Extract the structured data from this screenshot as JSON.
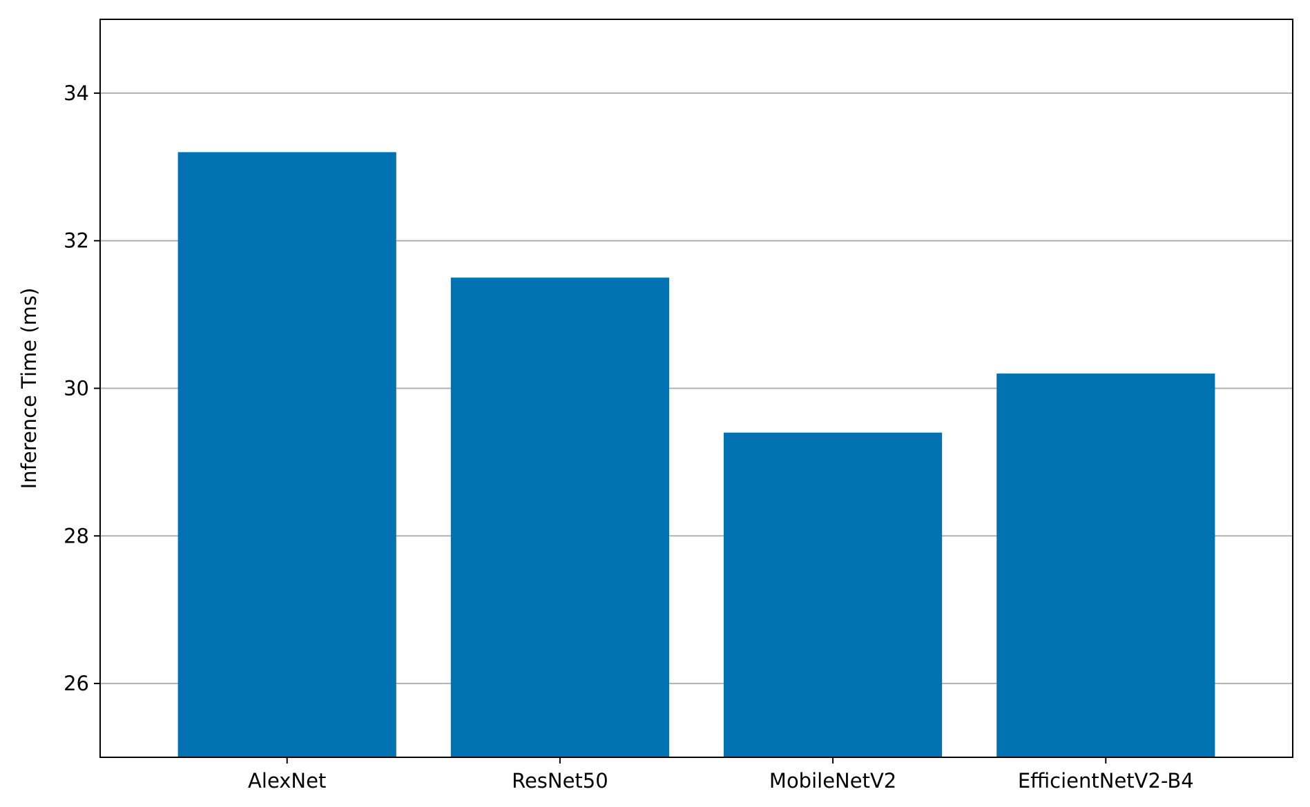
{
  "chart_data": {
    "type": "bar",
    "title": "",
    "xlabel": "",
    "ylabel": "Inference Time (ms)",
    "categories": [
      "AlexNet",
      "ResNet50",
      "MobileNetV2",
      "EfficientNetV2-B4"
    ],
    "values": [
      33.2,
      31.5,
      29.4,
      30.2
    ],
    "ylim": [
      25,
      35
    ],
    "yticks": [
      26,
      28,
      30,
      32,
      34
    ],
    "grid": "y",
    "legend": "none",
    "bar_color": "#0072b2",
    "grid_color": "#b0b0b0"
  }
}
